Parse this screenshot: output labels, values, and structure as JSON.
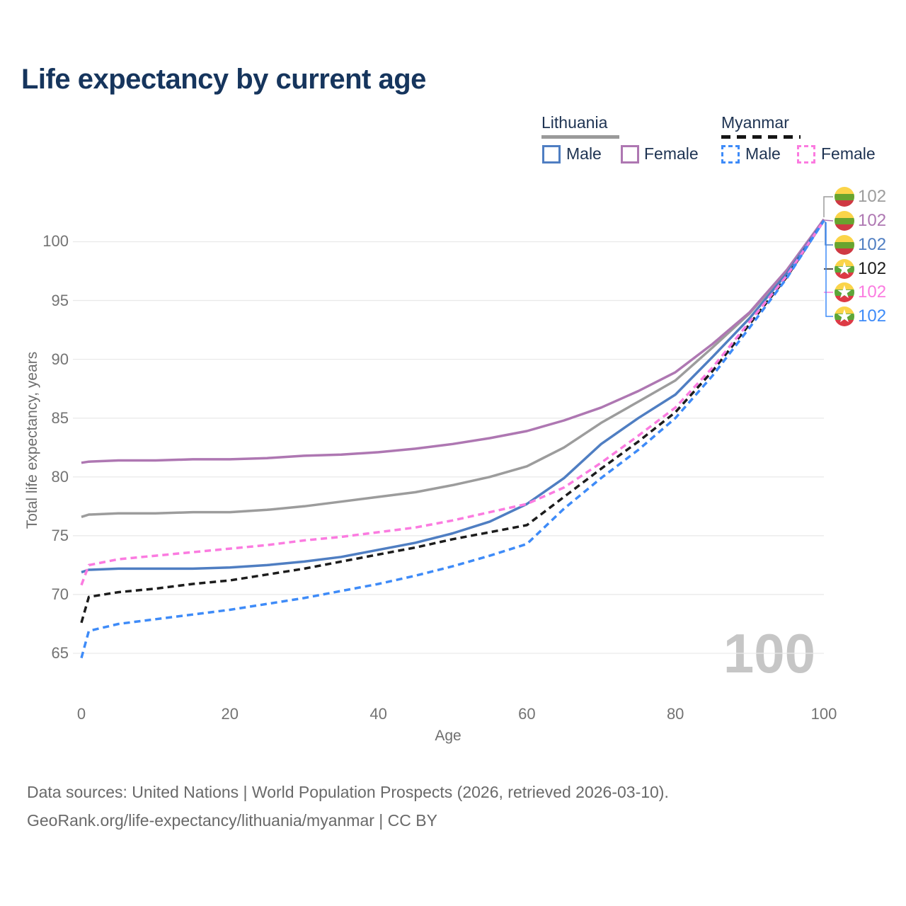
{
  "header": {
    "title": "Life expectancy by current age"
  },
  "legend": {
    "groups": [
      {
        "country": "Lithuania",
        "line_style": "solid",
        "underline_color": "#9a9a9a",
        "items": [
          {
            "label": "Male",
            "color": "#4f7ec2"
          },
          {
            "label": "Female",
            "color": "#ae77b2"
          }
        ]
      },
      {
        "country": "Myanmar",
        "line_style": "dashed",
        "underline_color": "#151515",
        "items": [
          {
            "label": "Male",
            "color": "#3e8bf8"
          },
          {
            "label": "Female",
            "color": "#fb7be0"
          }
        ]
      }
    ]
  },
  "watermark": "100",
  "footer": {
    "line1": "Data sources: United Nations | World Population Prospects (2026, retrieved 2026-03-10).",
    "line2": "GeoRank.org/life-expectancy/lithuania/myanmar | CC BY"
  },
  "chart_data": {
    "type": "line",
    "title": "Life expectancy by current age",
    "xlabel": "Age",
    "ylabel": "Total life expectancy, years",
    "xlim": [
      0,
      100
    ],
    "ylim": [
      65,
      102
    ],
    "x_ticks": [
      0,
      20,
      40,
      60,
      80,
      100
    ],
    "y_ticks": [
      65,
      70,
      75,
      80,
      85,
      90,
      95,
      100
    ],
    "grid": true,
    "legend_position": "top-right",
    "x": [
      0,
      1,
      5,
      10,
      15,
      20,
      25,
      30,
      35,
      40,
      45,
      50,
      55,
      60,
      65,
      70,
      75,
      80,
      85,
      90,
      95,
      100
    ],
    "series": [
      {
        "name": "Lithuania total",
        "country": "Lithuania",
        "sex": "total",
        "color": "#9c9c9c",
        "dashed": false,
        "flag": "lt",
        "end_label": "102",
        "values": [
          76.6,
          76.8,
          76.9,
          76.9,
          77.0,
          77.0,
          77.2,
          77.5,
          77.9,
          78.3,
          78.7,
          79.3,
          80.0,
          80.9,
          82.5,
          84.6,
          86.4,
          88.2,
          91.0,
          93.9,
          97.5,
          101.9
        ]
      },
      {
        "name": "Lithuania Female",
        "country": "Lithuania",
        "sex": "female",
        "color": "#ae77b2",
        "dashed": false,
        "flag": "lt",
        "end_label": "102",
        "values": [
          81.2,
          81.3,
          81.4,
          81.4,
          81.5,
          81.5,
          81.6,
          81.8,
          81.9,
          82.1,
          82.4,
          82.8,
          83.3,
          83.9,
          84.8,
          85.9,
          87.3,
          88.9,
          91.3,
          94.0,
          97.6,
          101.9
        ]
      },
      {
        "name": "Lithuania Male",
        "country": "Lithuania",
        "sex": "male",
        "color": "#4f7ec2",
        "dashed": false,
        "flag": "lt",
        "end_label": "102",
        "values": [
          71.9,
          72.1,
          72.2,
          72.2,
          72.2,
          72.3,
          72.5,
          72.8,
          73.2,
          73.8,
          74.4,
          75.2,
          76.2,
          77.7,
          79.9,
          82.8,
          85.0,
          87.0,
          90.2,
          93.5,
          97.3,
          101.8
        ]
      },
      {
        "name": "Myanmar total",
        "country": "Myanmar",
        "sex": "total",
        "color": "#1c1c1c",
        "dashed": true,
        "flag": "mm",
        "end_label": "102",
        "values": [
          67.6,
          69.8,
          70.2,
          70.5,
          70.9,
          71.2,
          71.7,
          72.2,
          72.8,
          73.4,
          74.0,
          74.7,
          75.3,
          75.9,
          78.3,
          80.7,
          83.0,
          85.5,
          89.0,
          93.0,
          97.0,
          101.8
        ]
      },
      {
        "name": "Myanmar Female",
        "country": "Myanmar",
        "sex": "female",
        "color": "#fb7be0",
        "dashed": true,
        "flag": "mm",
        "end_label": "102",
        "values": [
          70.8,
          72.5,
          73.0,
          73.3,
          73.6,
          73.9,
          74.2,
          74.6,
          74.9,
          75.3,
          75.7,
          76.3,
          77.0,
          77.7,
          79.1,
          81.2,
          83.5,
          85.9,
          89.3,
          93.2,
          97.1,
          101.8
        ]
      },
      {
        "name": "Myanmar Male",
        "country": "Myanmar",
        "sex": "male",
        "color": "#3e8bf8",
        "dashed": true,
        "flag": "mm",
        "end_label": "102",
        "values": [
          64.6,
          66.9,
          67.5,
          67.9,
          68.3,
          68.7,
          69.2,
          69.7,
          70.3,
          70.9,
          71.6,
          72.4,
          73.3,
          74.3,
          77.3,
          79.9,
          82.3,
          85.0,
          88.6,
          92.7,
          96.9,
          101.8
        ]
      }
    ],
    "flag_colors": {
      "lt": [
        "#fbd449",
        "#68a42f",
        "#cf3943"
      ],
      "mm": [
        "#fbd449",
        "#5ca639",
        "#dd3a45"
      ]
    }
  }
}
